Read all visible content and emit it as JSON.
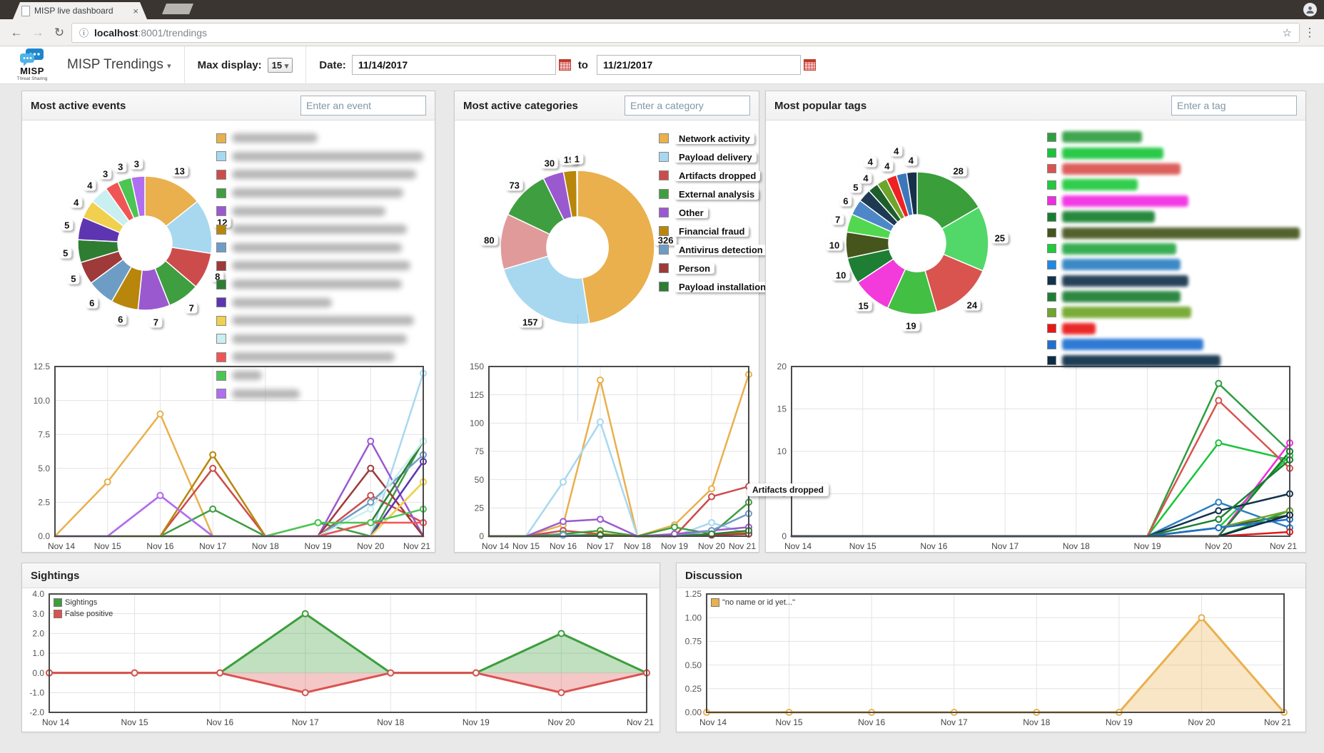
{
  "browser": {
    "tab_title": "MISP live dashboard",
    "url_host": "localhost",
    "url_rest": ":8001/trendings"
  },
  "icons": {
    "back": "←",
    "forward": "→",
    "reload": "↻",
    "info": "ⓘ",
    "star": "☆",
    "menu": "⋮",
    "tab_close": "×",
    "caret": "▾"
  },
  "header": {
    "logo_text": "MISP",
    "logo_subtext": "Threat Sharing",
    "app_title": "MISP Trendings",
    "max_display_label": "Max display:",
    "max_display_value": "15",
    "date_label": "Date:",
    "date_from": "11/14/2017",
    "to_label": "to",
    "date_to": "11/21/2017"
  },
  "x_days": [
    "Nov 14",
    "Nov 15",
    "Nov 16",
    "Nov 17",
    "Nov 18",
    "Nov 19",
    "Nov 20",
    "Nov 21"
  ],
  "panels": {
    "events": {
      "title": "Most active events",
      "search_placeholder": "Enter an event",
      "legend_type": "blur",
      "legend": [
        {
          "color": "#e9b04d",
          "blur_width": 120
        },
        {
          "color": "#a8d8f0",
          "blur_width": 268
        },
        {
          "color": "#cc4c4c",
          "blur_width": 258
        },
        {
          "color": "#3f9e3f",
          "blur_width": 240
        },
        {
          "color": "#9b59d0",
          "blur_width": 215
        },
        {
          "color": "#b8860b",
          "blur_width": 245
        },
        {
          "color": "#6d9dc5",
          "blur_width": 238
        },
        {
          "color": "#9e3a3a",
          "blur_width": 250
        },
        {
          "color": "#2e7d32",
          "blur_width": 238
        },
        {
          "color": "#5e35b1",
          "blur_width": 140
        },
        {
          "color": "#f0d04e",
          "blur_width": 255
        },
        {
          "color": "#c9eff0",
          "blur_width": 245
        },
        {
          "color": "#f05555",
          "blur_width": 228
        },
        {
          "color": "#4cc552",
          "blur_width": 42
        },
        {
          "color": "#b06ef0",
          "blur_width": 95
        }
      ],
      "chart_data": {
        "type": "donut+line",
        "donut": {
          "labels": "blurred",
          "values": [
            13,
            12,
            8,
            7,
            7,
            6,
            6,
            5,
            5,
            5,
            4,
            4,
            3,
            3,
            3
          ],
          "colors": [
            "#e9b04d",
            "#a8d8f0",
            "#cc4c4c",
            "#3f9e3f",
            "#9b59d0",
            "#b8860b",
            "#6d9dc5",
            "#9e3a3a",
            "#2e7d32",
            "#5e35b1",
            "#f0d04e",
            "#c9eff0",
            "#f05555",
            "#4cc552",
            "#b06ef0"
          ]
        },
        "line": {
          "ymin": 0,
          "ymax": 12.5,
          "ylabels": [
            "12.5",
            "10.0",
            "7.5",
            "5.0",
            "2.5",
            "0.0"
          ],
          "series": [
            {
              "color": "#e9b04d",
              "values": [
                0,
                4,
                9,
                0,
                0,
                0,
                0,
                4
              ]
            },
            {
              "color": "#a8d8f0",
              "values": [
                0,
                0,
                0,
                0,
                0,
                0,
                0,
                12
              ]
            },
            {
              "color": "#cc4c4c",
              "values": [
                0,
                0,
                0,
                5,
                0,
                0,
                3,
                1
              ]
            },
            {
              "color": "#3f9e3f",
              "values": [
                0,
                0,
                0,
                2,
                0,
                1,
                0,
                7
              ]
            },
            {
              "color": "#9b59d0",
              "values": [
                0,
                0,
                3,
                0,
                0,
                0,
                7,
                0
              ]
            },
            {
              "color": "#b8860b",
              "values": [
                0,
                0,
                0,
                6,
                0,
                0,
                0,
                0
              ]
            },
            {
              "color": "#6d9dc5",
              "values": [
                0,
                0,
                0,
                0,
                0,
                0,
                2.5,
                6
              ]
            },
            {
              "color": "#9e3a3a",
              "values": [
                0,
                0,
                0,
                0,
                0,
                0,
                5,
                0
              ]
            },
            {
              "color": "#2e7d32",
              "values": [
                0,
                0,
                0,
                0,
                0,
                0,
                1,
                7
              ]
            },
            {
              "color": "#5e35b1",
              "values": [
                0,
                0,
                0,
                0,
                0,
                0,
                0,
                5.5
              ]
            },
            {
              "color": "#f0d04e",
              "values": [
                0,
                0,
                0,
                0,
                0,
                0,
                0,
                4
              ]
            },
            {
              "color": "#c9eff0",
              "values": [
                0,
                0,
                0,
                0,
                0,
                0,
                2,
                7
              ]
            },
            {
              "color": "#f05555",
              "values": [
                0,
                0,
                0,
                0,
                0,
                0,
                1,
                1
              ]
            },
            {
              "color": "#4cc552",
              "values": [
                0,
                0,
                0,
                0,
                0,
                1,
                1,
                2
              ]
            },
            {
              "color": "#b06ef0",
              "values": [
                0,
                0,
                3,
                0,
                0,
                0,
                0,
                0
              ]
            }
          ]
        }
      }
    },
    "categories": {
      "title": "Most active categories",
      "search_placeholder": "Enter a category",
      "legend_type": "labels",
      "legend": [
        {
          "label": "Network activity",
          "color": "#e9b04d"
        },
        {
          "label": "Payload delivery",
          "color": "#a8d8f0"
        },
        {
          "label": "Artifacts dropped",
          "color": "#cc4c4c"
        },
        {
          "label": "External analysis",
          "color": "#3f9e3f"
        },
        {
          "label": "Other",
          "color": "#9b59d0"
        },
        {
          "label": "Financial fraud",
          "color": "#b8860b"
        },
        {
          "label": "Antivirus detection",
          "color": "#6d9dc5"
        },
        {
          "label": "Person",
          "color": "#9e3a3a"
        },
        {
          "label": "Payload installation",
          "color": "#2e7d32"
        }
      ],
      "tooltip": "Artifacts dropped",
      "chart_data": {
        "type": "donut+line",
        "donut": {
          "labels": [
            "Network activity",
            "Payload delivery",
            "Artifacts dropped",
            "External analysis",
            "Other",
            "Financial fraud",
            "Antivirus detection"
          ],
          "values": [
            326,
            157,
            80,
            73,
            30,
            19,
            1
          ],
          "colors": [
            "#e9b04d",
            "#a8d8f0",
            "#e09a9a",
            "#3f9e3f",
            "#9b59d0",
            "#b8860b",
            "#a8d8f0"
          ]
        },
        "line": {
          "ymin": 0,
          "ymax": 150,
          "ylabels": [
            "150",
            "125",
            "100",
            "75",
            "50",
            "25",
            "0"
          ],
          "series": [
            {
              "name": "Network activity",
              "color": "#e9b04d",
              "values": [
                0,
                0,
                10,
                138,
                0,
                10,
                42,
                143
              ]
            },
            {
              "name": "Payload delivery",
              "color": "#a8d8f0",
              "values": [
                0,
                0,
                48,
                101,
                0,
                0,
                12,
                2
              ]
            },
            {
              "name": "Artifacts dropped",
              "color": "#cc4c4c",
              "values": [
                0,
                0,
                5,
                2,
                0,
                0,
                35,
                44
              ]
            },
            {
              "name": "External analysis",
              "color": "#3f9e3f",
              "values": [
                0,
                0,
                2,
                5,
                0,
                8,
                2,
                30
              ]
            },
            {
              "name": "Other",
              "color": "#9b59d0",
              "values": [
                0,
                0,
                13,
                15,
                0,
                2,
                5,
                8
              ]
            },
            {
              "name": "Financial fraud",
              "color": "#b8860b",
              "values": [
                0,
                0,
                0,
                2,
                0,
                0,
                2,
                3
              ]
            },
            {
              "name": "Antivirus detection",
              "color": "#6d9dc5",
              "values": [
                0,
                0,
                1,
                1,
                0,
                0,
                5,
                20
              ]
            },
            {
              "name": "Person",
              "color": "#9e3a3a",
              "values": [
                0,
                0,
                0,
                1,
                0,
                0,
                1,
                2
              ]
            },
            {
              "name": "Payload installation",
              "color": "#2e7d32",
              "values": [
                0,
                0,
                0,
                1,
                0,
                0,
                2,
                5
              ]
            }
          ]
        }
      }
    },
    "tags": {
      "title": "Most popular tags",
      "search_placeholder": "Enter a tag",
      "legend_type": "pills",
      "legend": [
        {
          "color": "#2f9e41",
          "pill_color": "#2f9e41",
          "pill_width": 112
        },
        {
          "color": "#18c53a",
          "pill_color": "#18c53a",
          "pill_width": 142
        },
        {
          "color": "#d9534f",
          "pill_color": "#d9534f",
          "pill_width": 166
        },
        {
          "color": "#1fca3d",
          "pill_color": "#1fca3d",
          "pill_width": 106
        },
        {
          "color": "#f12be2",
          "pill_color": "#f12be2",
          "pill_width": 177
        },
        {
          "color": "#157f2d",
          "pill_color": "#157f2d",
          "pill_width": 130
        },
        {
          "color": "#45551c",
          "pill_color": "#45551c",
          "pill_width": 343
        },
        {
          "color": "#1fca3d",
          "pill_color": "#28a745",
          "pill_width": 160
        },
        {
          "color": "#1e88e5",
          "pill_color": "#2d7fc1",
          "pill_width": 166
        },
        {
          "color": "#13324b",
          "pill_color": "#13324b",
          "pill_width": 177
        },
        {
          "color": "#1d7e34",
          "pill_color": "#1d7e34",
          "pill_width": 166
        },
        {
          "color": "#6fa52a",
          "pill_color": "#6fa52a",
          "pill_width": 181
        },
        {
          "color": "#e81717",
          "pill_color": "#e81717",
          "pill_width": 47
        },
        {
          "color": "#1e6fd0",
          "pill_color": "#1e6fd0",
          "pill_width": 198
        },
        {
          "color": "#0d2d46",
          "pill_color": "#0d2d46",
          "pill_width": 222
        }
      ],
      "chart_data": {
        "type": "donut+line",
        "donut": {
          "labels": "blurred",
          "values": [
            28,
            25,
            24,
            19,
            15,
            10,
            10,
            7,
            6,
            5,
            4,
            4,
            4,
            4,
            4
          ],
          "colors": [
            "#3a9e3a",
            "#52d869",
            "#d9534f",
            "#43bf43",
            "#f23bda",
            "#1e7e34",
            "#45551c",
            "#52d850",
            "#4d87c7",
            "#1d3a52",
            "#1d5e2a",
            "#6fa52a",
            "#ee2222",
            "#3b77bb",
            "#16324a"
          ]
        },
        "line": {
          "ymin": 0,
          "ymax": 20,
          "ylabels": [
            "20",
            "15",
            "10",
            "5",
            "0"
          ],
          "series": [
            {
              "color": "#2f9e41",
              "values": [
                0,
                0,
                0,
                0,
                0,
                0,
                18,
                10
              ]
            },
            {
              "color": "#18c53a",
              "values": [
                0,
                0,
                0,
                0,
                0,
                0,
                11,
                9
              ]
            },
            {
              "color": "#d9534f",
              "values": [
                0,
                0,
                0,
                0,
                0,
                0,
                16,
                8
              ]
            },
            {
              "color": "#1fca3d",
              "values": [
                0,
                0,
                0,
                0,
                0,
                0,
                1,
                9.5
              ]
            },
            {
              "color": "#f12be2",
              "values": [
                0,
                0,
                0,
                0,
                0,
                0,
                0,
                11
              ]
            },
            {
              "color": "#157f2d",
              "values": [
                0,
                0,
                0,
                0,
                0,
                0,
                0,
                10
              ]
            },
            {
              "color": "#45551c",
              "values": [
                0,
                0,
                0,
                0,
                0,
                0,
                1,
                2.5
              ]
            },
            {
              "color": "#28a745",
              "values": [
                0,
                0,
                0,
                0,
                0,
                0,
                0,
                3
              ]
            },
            {
              "color": "#2d7fc1",
              "values": [
                0,
                0,
                0,
                0,
                0,
                0,
                4,
                1
              ]
            },
            {
              "color": "#13324b",
              "values": [
                0,
                0,
                0,
                0,
                0,
                0,
                3,
                5
              ]
            },
            {
              "color": "#1d7e34",
              "values": [
                0,
                0,
                0,
                0,
                0,
                0,
                2,
                9
              ]
            },
            {
              "color": "#6fa52a",
              "values": [
                0,
                0,
                0,
                0,
                0,
                0,
                1,
                3
              ]
            },
            {
              "color": "#e81717",
              "values": [
                0,
                0,
                0,
                0,
                0,
                0,
                0,
                0.5
              ]
            },
            {
              "color": "#1e6fd0",
              "values": [
                0,
                0,
                0,
                0,
                0,
                0,
                1,
                2
              ]
            },
            {
              "color": "#0d2d46",
              "values": [
                0,
                0,
                0,
                0,
                0,
                0,
                0,
                2.5
              ]
            }
          ]
        }
      }
    },
    "sightings": {
      "title": "Sightings",
      "chart_data": {
        "type": "area",
        "ymin": -2,
        "ymax": 4,
        "ylabels": [
          "4.0",
          "3.0",
          "2.0",
          "1.0",
          "0.0",
          "-1.0",
          "-2.0"
        ],
        "series": [
          {
            "name": "Sightings",
            "color": "#3c9e3c",
            "values": [
              0,
              0,
              0,
              3,
              0,
              0,
              2,
              0
            ]
          },
          {
            "name": "False positive",
            "color": "#d9534f",
            "values": [
              0,
              0,
              0,
              -1,
              0,
              0,
              -1,
              0
            ]
          }
        ]
      }
    },
    "discussion": {
      "title": "Discussion",
      "chart_data": {
        "type": "area",
        "ymin": 0,
        "ymax": 1.25,
        "ylabels": [
          "1.25",
          "1.00",
          "0.75",
          "0.50",
          "0.25",
          "0.00"
        ],
        "series": [
          {
            "name": "\"no name or id yet...\"",
            "color": "#e9b04d",
            "values": [
              0,
              0,
              0,
              0,
              0,
              0,
              1,
              0
            ]
          }
        ]
      }
    }
  }
}
